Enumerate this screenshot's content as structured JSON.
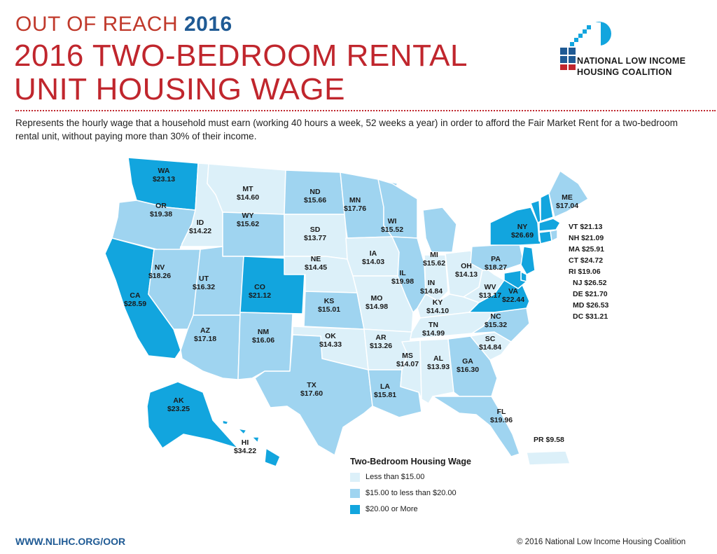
{
  "header": {
    "kicker": "OUT OF REACH",
    "kicker_year": "2016",
    "title_line1": "2016 TWO-BEDROOM RENTAL",
    "title_line2": "UNIT HOUSING WAGE",
    "description": "Represents the hourly wage that a household must earn (working 40 hours a week, 52 weeks a year) in order to afford the Fair Market Rent for a two-bedroom rental unit, without paying more than 30% of their income."
  },
  "logo": {
    "line1": "NATIONAL LOW INCOME",
    "line2": "HOUSING COALITION",
    "icon": "nlihc-house-sun-logo"
  },
  "colors": {
    "low": "#dcf0f9",
    "mid": "#9fd4f0",
    "high": "#12a5de",
    "title_red": "#c0262d",
    "title_blue": "#1f5a94"
  },
  "legend": {
    "title": "Two-Bedroom Housing Wage",
    "items": [
      {
        "label": "Less than $15.00",
        "tier": "low"
      },
      {
        "label": "$15.00 to less than $20.00",
        "tier": "mid"
      },
      {
        "label": "$20.00 or More",
        "tier": "high"
      }
    ]
  },
  "states": [
    {
      "code": "WA",
      "wage": "$23.13",
      "tier": "high"
    },
    {
      "code": "OR",
      "wage": "$19.38",
      "tier": "mid"
    },
    {
      "code": "CA",
      "wage": "$28.59",
      "tier": "high"
    },
    {
      "code": "ID",
      "wage": "$14.22",
      "tier": "low"
    },
    {
      "code": "NV",
      "wage": "$18.26",
      "tier": "mid"
    },
    {
      "code": "MT",
      "wage": "$14.60",
      "tier": "low"
    },
    {
      "code": "WY",
      "wage": "$15.62",
      "tier": "mid"
    },
    {
      "code": "UT",
      "wage": "$16.32",
      "tier": "mid"
    },
    {
      "code": "AZ",
      "wage": "$17.18",
      "tier": "mid"
    },
    {
      "code": "CO",
      "wage": "$21.12",
      "tier": "high"
    },
    {
      "code": "NM",
      "wage": "$16.06",
      "tier": "mid"
    },
    {
      "code": "ND",
      "wage": "$15.66",
      "tier": "mid"
    },
    {
      "code": "SD",
      "wage": "$13.77",
      "tier": "low"
    },
    {
      "code": "NE",
      "wage": "$14.45",
      "tier": "low"
    },
    {
      "code": "KS",
      "wage": "$15.01",
      "tier": "mid"
    },
    {
      "code": "OK",
      "wage": "$14.33",
      "tier": "low"
    },
    {
      "code": "TX",
      "wage": "$17.60",
      "tier": "mid"
    },
    {
      "code": "MN",
      "wage": "$17.76",
      "tier": "mid"
    },
    {
      "code": "IA",
      "wage": "$14.03",
      "tier": "low"
    },
    {
      "code": "MO",
      "wage": "$14.98",
      "tier": "low"
    },
    {
      "code": "AR",
      "wage": "$13.26",
      "tier": "low"
    },
    {
      "code": "LA",
      "wage": "$15.81",
      "tier": "mid"
    },
    {
      "code": "WI",
      "wage": "$15.52",
      "tier": "mid"
    },
    {
      "code": "IL",
      "wage": "$19.98",
      "tier": "mid"
    },
    {
      "code": "MS",
      "wage": "$14.07",
      "tier": "low"
    },
    {
      "code": "MI",
      "wage": "$15.62",
      "tier": "mid"
    },
    {
      "code": "IN",
      "wage": "$14.84",
      "tier": "low"
    },
    {
      "code": "OH",
      "wage": "$14.13",
      "tier": "low"
    },
    {
      "code": "KY",
      "wage": "$14.10",
      "tier": "low"
    },
    {
      "code": "TN",
      "wage": "$14.99",
      "tier": "low"
    },
    {
      "code": "AL",
      "wage": "$13.93",
      "tier": "low"
    },
    {
      "code": "GA",
      "wage": "$16.30",
      "tier": "mid"
    },
    {
      "code": "FL",
      "wage": "$19.96",
      "tier": "mid"
    },
    {
      "code": "SC",
      "wage": "$14.84",
      "tier": "low"
    },
    {
      "code": "NC",
      "wage": "$15.32",
      "tier": "mid"
    },
    {
      "code": "VA",
      "wage": "$22.44",
      "tier": "high"
    },
    {
      "code": "WV",
      "wage": "$13.17",
      "tier": "low"
    },
    {
      "code": "PA",
      "wage": "$18.27",
      "tier": "mid"
    },
    {
      "code": "NY",
      "wage": "$26.69",
      "tier": "high"
    },
    {
      "code": "ME",
      "wage": "$17.04",
      "tier": "mid"
    },
    {
      "code": "AK",
      "wage": "$23.25",
      "tier": "high"
    },
    {
      "code": "HI",
      "wage": "$34.22",
      "tier": "high"
    },
    {
      "code": "VT",
      "wage": "$21.13",
      "tier": "high"
    },
    {
      "code": "NH",
      "wage": "$21.09",
      "tier": "high"
    },
    {
      "code": "MA",
      "wage": "$25.91",
      "tier": "high"
    },
    {
      "code": "CT",
      "wage": "$24.72",
      "tier": "high"
    },
    {
      "code": "RI",
      "wage": "$19.06",
      "tier": "mid"
    },
    {
      "code": "NJ",
      "wage": "$26.52",
      "tier": "high"
    },
    {
      "code": "DE",
      "wage": "$21.70",
      "tier": "high"
    },
    {
      "code": "MD",
      "wage": "$26.53",
      "tier": "high"
    },
    {
      "code": "DC",
      "wage": "$31.21",
      "tier": "high"
    },
    {
      "code": "PR",
      "wage": "$9.58",
      "tier": "low"
    }
  ],
  "footer": {
    "url": "WWW.NLIHC.ORG/OOR",
    "copyright": "© 2016 National Low Income Housing Coalition"
  }
}
